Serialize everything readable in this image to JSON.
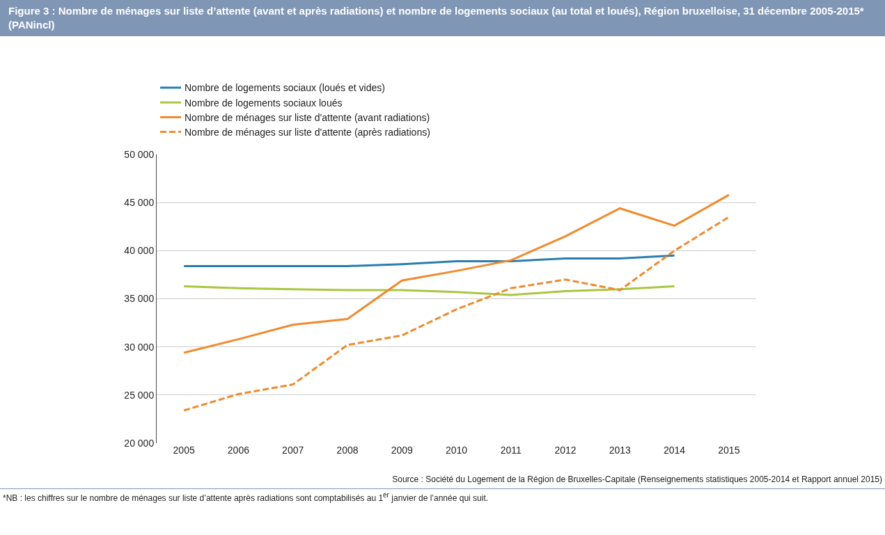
{
  "chart_data": {
    "type": "line",
    "title": "Figure 3 :  Nombre de ménages sur liste d’attente (avant et après radiations) et nombre de logements sociaux (au total et loués), Région bruxelloise, 31 décembre 2005-2015* (PANincl)",
    "categories": [
      "2005",
      "2006",
      "2007",
      "2008",
      "2009",
      "2010",
      "2011",
      "2012",
      "2013",
      "2014",
      "2015"
    ],
    "series": [
      {
        "name": "Nombre de logements sociaux (loués et vides)",
        "color": "#2a7db0",
        "values": [
          38400,
          38400,
          38400,
          38400,
          38600,
          38900,
          38900,
          39200,
          39200,
          39500,
          null
        ]
      },
      {
        "name": "Nombre de logements sociaux loués",
        "color": "#a9c63f",
        "values": [
          36300,
          36100,
          36000,
          35900,
          35900,
          35700,
          35400,
          35800,
          36000,
          36300,
          null
        ]
      },
      {
        "name": "Nombre de ménages sur liste d'attente (avant radiations)",
        "color": "#f08a2c",
        "values": [
          29400,
          30800,
          32300,
          32900,
          36900,
          37900,
          39000,
          41500,
          44400,
          42600,
          45800
        ]
      },
      {
        "name": "Nombre de ménages sur liste d'attente (après radiations)",
        "color": "#f08a2c",
        "line_style": "dashed",
        "values": [
          23400,
          25100,
          26100,
          30200,
          31200,
          33900,
          36100,
          37000,
          35900,
          40000,
          43500
        ]
      }
    ],
    "ylim": [
      20000,
      50000
    ],
    "yticks": [
      {
        "value": 20000,
        "label": "20 000"
      },
      {
        "value": 25000,
        "label": "25 000"
      },
      {
        "value": 30000,
        "label": "30 000"
      },
      {
        "value": 35000,
        "label": "35 000"
      },
      {
        "value": 40000,
        "label": "40 000"
      },
      {
        "value": 45000,
        "label": "45 000"
      },
      {
        "value": 50000,
        "label": "50 000"
      }
    ],
    "grid": "y",
    "legend": "top left",
    "marker": "none",
    "annotations": [
      "Source : Société du Logement de la Région de Bruxelles-Capitale (Renseignements statistiques 2005-2014 et Rapport annuel 2015)",
      "*NB : les chiffres sur le nombre de ménages sur liste d’attente après radiations sont comptabilisés au 1$^{er}$ janvier de l’année qui suit."
    ]
  }
}
